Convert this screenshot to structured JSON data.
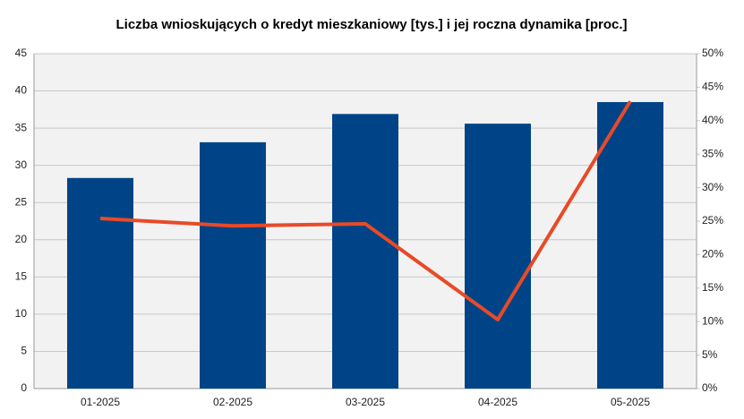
{
  "chart_data": {
    "type": "bar-line",
    "title": "Liczba wnioskujących o kredyt mieszkaniowy [tys.] i jej roczna dynamika [proc.]",
    "categories": [
      "01-2025",
      "02-2025",
      "03-2025",
      "04-2025",
      "05-2025"
    ],
    "series": [
      {
        "type": "bar",
        "color": "#004487",
        "values": [
          28.3,
          33.1,
          36.9,
          35.6,
          38.5
        ]
      },
      {
        "type": "line",
        "axis": "y2",
        "color": "#e84a27",
        "values": [
          25.4,
          24.3,
          24.6,
          10.3,
          42.9
        ]
      }
    ],
    "ylim": [
      0,
      45
    ],
    "yticks": [
      0,
      5,
      10,
      15,
      20,
      25,
      30,
      35,
      40,
      45
    ],
    "y2lim": [
      0,
      50
    ],
    "y2ticks": [
      {
        "value": 0,
        "label": "0%"
      },
      {
        "value": 5,
        "label": "5%"
      },
      {
        "value": 10,
        "label": "10%"
      },
      {
        "value": 15,
        "label": "15%"
      },
      {
        "value": 20,
        "label": "20%"
      },
      {
        "value": 25,
        "label": "25%"
      },
      {
        "value": 30,
        "label": "30%"
      },
      {
        "value": 35,
        "label": "35%"
      },
      {
        "value": 40,
        "label": "40%"
      },
      {
        "value": 45,
        "label": "45%"
      },
      {
        "value": 50,
        "label": "50%"
      }
    ],
    "grid": true
  }
}
